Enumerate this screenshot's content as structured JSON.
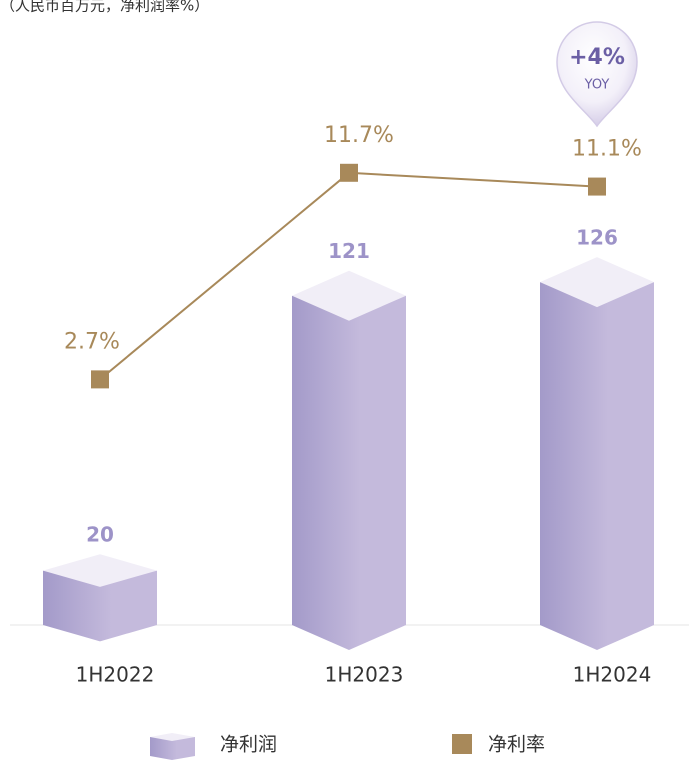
{
  "chart_data": {
    "type": "bar",
    "subtitle": "（人民币百万元，净利润率%）",
    "categories": [
      "1H2022",
      "1H2023",
      "1H2024"
    ],
    "series": [
      {
        "name": "净利润",
        "color": "#c3b9dc",
        "values": [
          20,
          121,
          126
        ]
      },
      {
        "name": "净利率",
        "type": "line",
        "axis": "y2",
        "color": "#a8895a",
        "values": [
          2.7,
          11.7,
          11.1
        ],
        "value_labels": [
          "2.7%",
          "11.7%",
          "11.1%"
        ]
      }
    ],
    "ylim": [
      0,
      140
    ],
    "y2lim": [
      -8,
      14
    ],
    "annotation": {
      "value": 4,
      "label": "+4%",
      "sublabel": "YOY"
    }
  }
}
